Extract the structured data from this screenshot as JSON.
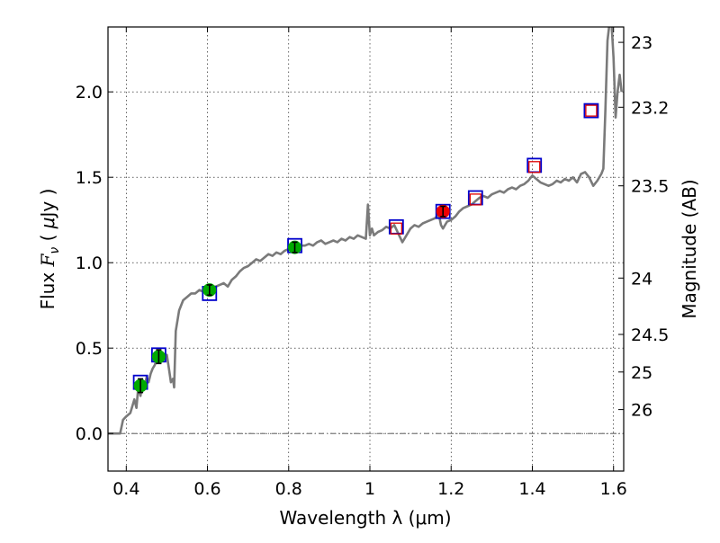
{
  "chart_data": {
    "type": "line+scatter",
    "xlabel": "Wavelength  λ (μm)",
    "ylabel_parts": [
      "Flux  ",
      "F",
      "ν",
      "  ( ",
      "μ",
      "Jy )"
    ],
    "ylabel_right": "Magnitude (AB)",
    "xlim": [
      0.355,
      1.625
    ],
    "ylim": [
      -0.22,
      2.38
    ],
    "grid": true,
    "x_ticks": [
      0.4,
      0.6,
      0.8,
      1.0,
      1.2,
      1.4,
      1.6
    ],
    "x_tick_labels": [
      "0.4",
      "0.6",
      "0.8",
      "1",
      "1.2",
      "1.4",
      "1.6"
    ],
    "y_ticks": [
      0.0,
      0.5,
      1.0,
      1.5,
      2.0
    ],
    "y_tick_labels": [
      "0.0",
      "0.5",
      "1.0",
      "1.5",
      "2.0"
    ],
    "mag_ticks": [
      {
        "label": "23",
        "flux": 2.29
      },
      {
        "label": "23.2",
        "flux": 1.91
      },
      {
        "label": "23.5",
        "flux": 1.45
      },
      {
        "label": "24",
        "flux": 0.91
      },
      {
        "label": "24.5",
        "flux": 0.58
      },
      {
        "label": "25",
        "flux": 0.36
      },
      {
        "label": "26",
        "flux": 0.14
      }
    ],
    "zero_line": 0.0,
    "colors": {
      "template": "#7a7a7a",
      "model_box": "#0000cc",
      "obs_box": "#dd0000",
      "optical_point": "#00aa00",
      "nir_point": "#ee0000"
    },
    "template_spectrum": {
      "name": "SED template",
      "x": [
        0.355,
        0.37,
        0.385,
        0.392,
        0.4,
        0.41,
        0.42,
        0.425,
        0.43,
        0.435,
        0.44,
        0.445,
        0.45,
        0.455,
        0.46,
        0.465,
        0.47,
        0.475,
        0.48,
        0.485,
        0.49,
        0.495,
        0.5,
        0.505,
        0.51,
        0.515,
        0.518,
        0.522,
        0.53,
        0.54,
        0.55,
        0.56,
        0.57,
        0.58,
        0.59,
        0.6,
        0.61,
        0.62,
        0.63,
        0.64,
        0.65,
        0.66,
        0.67,
        0.68,
        0.69,
        0.7,
        0.71,
        0.72,
        0.73,
        0.74,
        0.75,
        0.76,
        0.77,
        0.78,
        0.79,
        0.8,
        0.81,
        0.82,
        0.83,
        0.84,
        0.85,
        0.86,
        0.87,
        0.88,
        0.89,
        0.9,
        0.91,
        0.92,
        0.93,
        0.94,
        0.95,
        0.96,
        0.97,
        0.98,
        0.99,
        0.995,
        1.0,
        1.005,
        1.01,
        1.02,
        1.03,
        1.04,
        1.05,
        1.06,
        1.07,
        1.08,
        1.09,
        1.1,
        1.11,
        1.12,
        1.13,
        1.14,
        1.15,
        1.16,
        1.17,
        1.175,
        1.18,
        1.19,
        1.2,
        1.21,
        1.22,
        1.23,
        1.24,
        1.25,
        1.26,
        1.27,
        1.28,
        1.29,
        1.3,
        1.31,
        1.32,
        1.33,
        1.34,
        1.35,
        1.36,
        1.37,
        1.38,
        1.39,
        1.4,
        1.41,
        1.42,
        1.43,
        1.44,
        1.45,
        1.46,
        1.47,
        1.48,
        1.49,
        1.5,
        1.51,
        1.52,
        1.53,
        1.54,
        1.55,
        1.56,
        1.57,
        1.575,
        1.58,
        1.585,
        1.59,
        1.595,
        1.6,
        1.605,
        1.61,
        1.615,
        1.62
      ],
      "y": [
        0.0,
        0.0,
        0.0,
        0.08,
        0.1,
        0.12,
        0.2,
        0.15,
        0.28,
        0.22,
        0.3,
        0.27,
        0.33,
        0.3,
        0.35,
        0.38,
        0.4,
        0.43,
        0.45,
        0.44,
        0.47,
        0.45,
        0.46,
        0.38,
        0.3,
        0.32,
        0.27,
        0.6,
        0.72,
        0.78,
        0.8,
        0.82,
        0.82,
        0.84,
        0.83,
        0.85,
        0.86,
        0.86,
        0.87,
        0.88,
        0.86,
        0.9,
        0.92,
        0.95,
        0.97,
        0.98,
        1.0,
        1.02,
        1.01,
        1.03,
        1.05,
        1.04,
        1.06,
        1.05,
        1.07,
        1.08,
        1.1,
        1.09,
        1.1,
        1.1,
        1.11,
        1.1,
        1.12,
        1.13,
        1.11,
        1.12,
        1.13,
        1.12,
        1.14,
        1.13,
        1.15,
        1.14,
        1.16,
        1.15,
        1.14,
        1.34,
        1.16,
        1.2,
        1.16,
        1.18,
        1.19,
        1.21,
        1.2,
        1.22,
        1.17,
        1.12,
        1.16,
        1.2,
        1.22,
        1.21,
        1.23,
        1.24,
        1.25,
        1.26,
        1.28,
        1.22,
        1.2,
        1.24,
        1.25,
        1.27,
        1.3,
        1.32,
        1.33,
        1.34,
        1.36,
        1.38,
        1.39,
        1.38,
        1.4,
        1.41,
        1.42,
        1.41,
        1.43,
        1.44,
        1.43,
        1.45,
        1.46,
        1.48,
        1.51,
        1.49,
        1.47,
        1.46,
        1.45,
        1.46,
        1.48,
        1.47,
        1.49,
        1.48,
        1.5,
        1.47,
        1.52,
        1.53,
        1.5,
        1.45,
        1.48,
        1.52,
        1.55,
        1.9,
        2.3,
        2.4,
        2.4,
        2.2,
        1.85,
        2.0,
        2.1,
        2.0
      ],
      "clip_top": 2.38
    },
    "photometry_series": [
      {
        "name": "optical",
        "x": [
          0.435,
          0.48,
          0.605,
          0.815
        ],
        "y": [
          0.28,
          0.45,
          0.84,
          1.09
        ],
        "yerr": [
          0.04,
          0.04,
          0.03,
          0.03
        ],
        "model_y": [
          0.3,
          0.46,
          0.82,
          1.1
        ]
      },
      {
        "name": "nir",
        "x": [
          1.065,
          1.18,
          1.26,
          1.405,
          1.545
        ],
        "y": [
          1.2,
          1.3,
          1.37,
          1.56,
          1.89
        ],
        "yerr": [
          null,
          0.03,
          null,
          null,
          null
        ],
        "model_y": [
          1.21,
          1.3,
          1.38,
          1.57,
          1.89
        ],
        "point_shown": [
          false,
          true,
          false,
          false,
          false
        ]
      }
    ]
  }
}
